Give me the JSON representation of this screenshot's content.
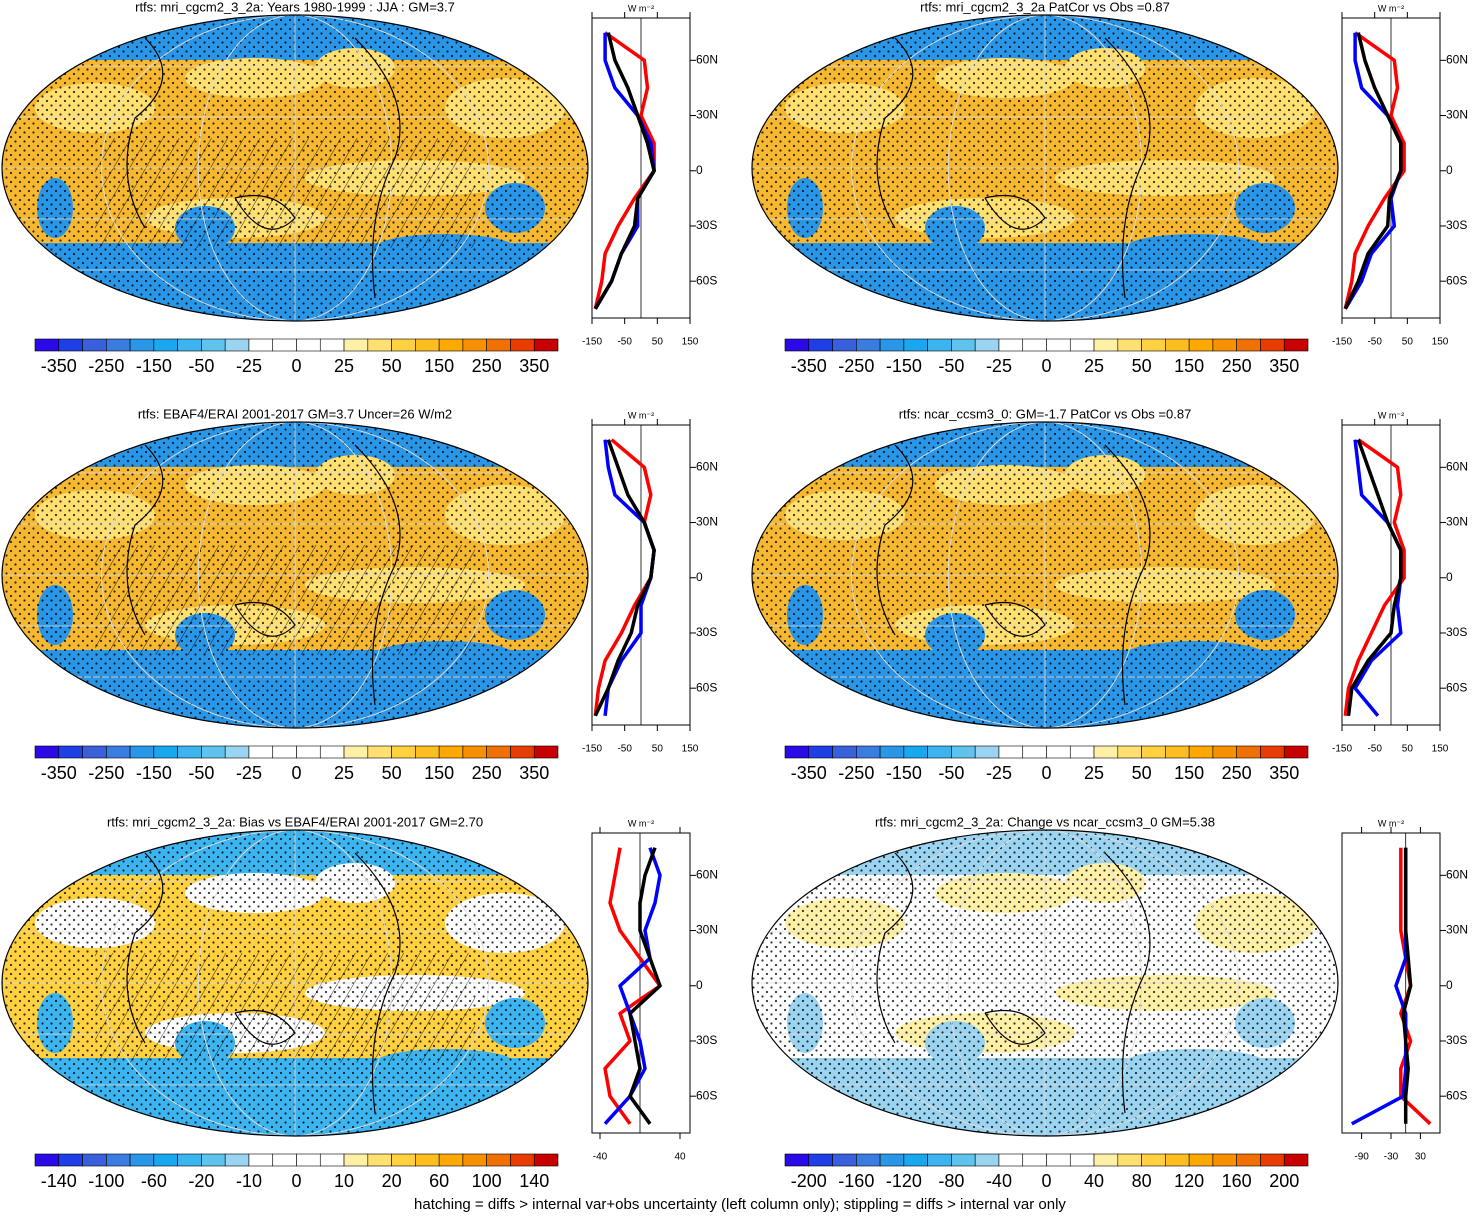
{
  "lat": [
    -75,
    -60,
    -45,
    -30,
    -15,
    0,
    15,
    30,
    45,
    60,
    75
  ],
  "lat_ylim": [
    -80,
    83
  ],
  "lat_ticks": [
    {
      "value": 60,
      "label": "60N"
    },
    {
      "value": 30,
      "label": "30N"
    },
    0,
    {
      "value": -30,
      "label": "30S"
    },
    {
      "value": -60,
      "label": "60S"
    }
  ],
  "units": "W m⁻²",
  "palette": [
    "#2a0ae6",
    "#1f3fe6",
    "#3a5fdc",
    "#3a7ce0",
    "#2a96e8",
    "#19a8f0",
    "#3cb4f0",
    "#5ec4ee",
    "#9ad4f0",
    "#ffffff",
    "#ffffff",
    "#ffffff",
    "#ffffff",
    "#fff0a8",
    "#ffe070",
    "#ffd040",
    "#ffbe20",
    "#ffa800",
    "#f89000",
    "#f07000",
    "#e83c00",
    "#c80000"
  ],
  "panels": [
    {
      "title": "rtfs: mri_cgcm2_3_2a: Years 1980-1999 : JJA : GM=3.7",
      "colorbar_labels": [
        -350,
        -250,
        -150,
        -50,
        -25,
        0,
        25,
        50,
        150,
        250,
        350
      ],
      "profile": {
        "xlim": [
          -150,
          150
        ],
        "xticks": [
          -150,
          -50,
          50,
          150
        ],
        "series": [
          {
            "color": "#ff0000",
            "values": [
              -140,
              -120,
              -110,
              -70,
              -20,
              40,
              40,
              0,
              20,
              10,
              -110
            ]
          },
          {
            "color": "#0000ff",
            "values": [
              -140,
              -90,
              -60,
              -10,
              -10,
              40,
              30,
              -10,
              -80,
              -110,
              -110
            ]
          },
          {
            "color": "#000000",
            "values": [
              -140,
              -90,
              -60,
              -20,
              -10,
              40,
              20,
              -10,
              -40,
              -80,
              -100
            ]
          }
        ]
      }
    },
    {
      "title": "rtfs: mri_cgcm2_3_2a PatCor vs Obs =0.87",
      "colorbar_labels": [
        -350,
        -250,
        -150,
        -50,
        -25,
        0,
        25,
        50,
        150,
        250,
        350
      ],
      "profile": {
        "xlim": [
          -150,
          150
        ],
        "xticks": [
          -150,
          -50,
          50,
          150
        ],
        "series": [
          {
            "color": "#ff0000",
            "values": [
              -140,
              -120,
              -110,
              -70,
              -20,
              40,
              40,
              0,
              20,
              10,
              -110
            ]
          },
          {
            "color": "#0000ff",
            "values": [
              -140,
              -90,
              -60,
              10,
              0,
              30,
              30,
              -10,
              -90,
              -110,
              -110
            ]
          },
          {
            "color": "#000000",
            "values": [
              -140,
              -100,
              -70,
              -10,
              -5,
              30,
              30,
              -10,
              -50,
              -80,
              -100
            ]
          }
        ]
      }
    },
    {
      "title": "rtfs: EBAF4/ERAI 2001-2017 GM=3.7 Uncer=26 W/m2",
      "colorbar_labels": [
        -350,
        -250,
        -150,
        -50,
        -25,
        0,
        25,
        50,
        150,
        250,
        350
      ],
      "profile": {
        "xlim": [
          -150,
          150
        ],
        "xticks": [
          -150,
          -50,
          50,
          150
        ],
        "series": [
          {
            "color": "#ff0000",
            "values": [
              -140,
              -130,
              -110,
              -60,
              -20,
              30,
              40,
              10,
              30,
              10,
              -90
            ]
          },
          {
            "color": "#0000ff",
            "values": [
              -110,
              -100,
              -60,
              0,
              0,
              30,
              40,
              10,
              -80,
              -100,
              -110
            ]
          },
          {
            "color": "#000000",
            "values": [
              -140,
              -100,
              -70,
              -30,
              -10,
              30,
              40,
              10,
              -40,
              -70,
              -100
            ]
          }
        ]
      }
    },
    {
      "title": "rtfs: ncar_ccsm3_0: GM=-1.7 PatCor vs Obs =0.87",
      "colorbar_labels": [
        -350,
        -250,
        -150,
        -50,
        -25,
        0,
        25,
        50,
        150,
        250,
        350
      ],
      "profile": {
        "xlim": [
          -150,
          150
        ],
        "xticks": [
          -150,
          -50,
          50,
          150
        ],
        "series": [
          {
            "color": "#ff0000",
            "values": [
              -140,
              -130,
              -100,
              -60,
              -20,
              40,
              40,
              10,
              30,
              20,
              -100
            ]
          },
          {
            "color": "#0000ff",
            "values": [
              -40,
              -110,
              -60,
              30,
              20,
              30,
              30,
              -10,
              -90,
              -100,
              -110
            ]
          },
          {
            "color": "#000000",
            "values": [
              -130,
              -120,
              -70,
              0,
              10,
              30,
              30,
              -10,
              -40,
              -70,
              -100
            ]
          }
        ]
      }
    },
    {
      "title": "rtfs: mri_cgcm2_3_2a: Bias vs EBAF4/ERAI 2001-2017 GM=2.70",
      "colorbar_labels": [
        -140,
        -100,
        -60,
        -20,
        -10,
        0,
        10,
        20,
        60,
        100,
        140
      ],
      "profile": {
        "xlim": [
          -48,
          50
        ],
        "xticks": [
          -40,
          40
        ],
        "series": [
          {
            "color": "#ff0000",
            "values": [
              -10,
              -30,
              -35,
              -10,
              -20,
              20,
              0,
              -20,
              -30,
              -25,
              -20
            ]
          },
          {
            "color": "#0000ff",
            "values": [
              -35,
              -10,
              5,
              0,
              -10,
              -20,
              10,
              5,
              15,
              20,
              10
            ]
          },
          {
            "color": "#000000",
            "values": [
              10,
              -10,
              0,
              -5,
              -10,
              20,
              10,
              0,
              0,
              5,
              15
            ]
          }
        ]
      }
    },
    {
      "title": "rtfs: mri_cgcm2_3_2a: Change vs ncar_ccsm3_0 GM=5.38",
      "colorbar_labels": [
        -200,
        -160,
        -120,
        -80,
        -40,
        0,
        40,
        80,
        120,
        160,
        200
      ],
      "profile": {
        "xlim": [
          -130,
          70
        ],
        "xticks": [
          -90,
          -30,
          30
        ],
        "series": [
          {
            "color": "#ff0000",
            "values": [
              50,
              -10,
              -10,
              10,
              -10,
              10,
              0,
              -10,
              -10,
              -10,
              -10
            ]
          },
          {
            "color": "#0000ff",
            "values": [
              -110,
              -5,
              0,
              0,
              0,
              -20,
              0,
              0,
              0,
              0,
              0
            ]
          },
          {
            "color": "#000000",
            "values": [
              0,
              0,
              5,
              0,
              -5,
              10,
              5,
              0,
              0,
              0,
              0
            ]
          }
        ]
      }
    }
  ],
  "footnote": "hatching = diffs > internal var+obs uncertainty (left column only); stippling = diffs > internal var only"
}
